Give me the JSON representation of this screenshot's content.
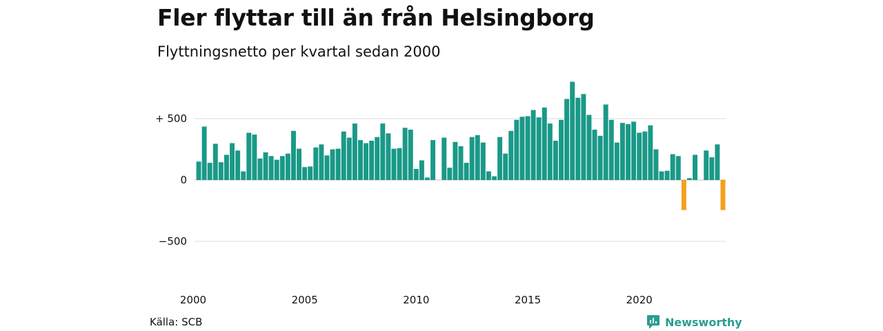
{
  "title": "Fler flyttar till än från Helsingborg",
  "subtitle": "Flyttningsnetto per kvartal sedan 2000",
  "source": "Källa: SCB",
  "brand": "Newsworthy",
  "colors": {
    "positive": "#1a9988",
    "negative": "#f4a01c",
    "grid": "#d9d9d9",
    "brand": "#2a9d8f"
  },
  "chart_data": {
    "type": "bar",
    "title": "Fler flyttar till än från Helsingborg",
    "subtitle": "Flyttningsnetto per kvartal sedan 2000",
    "xlabel": "",
    "ylabel": "",
    "ylim": [
      -850,
      850
    ],
    "yticks": [
      {
        "value": 500,
        "label": "+ 500"
      },
      {
        "value": 0,
        "label": "0"
      },
      {
        "value": -500,
        "label": "−500"
      }
    ],
    "xticks": [
      {
        "year": 2000,
        "label": "2000"
      },
      {
        "year": 2005,
        "label": "2005"
      },
      {
        "year": 2010,
        "label": "2010"
      },
      {
        "year": 2015,
        "label": "2015"
      },
      {
        "year": 2020,
        "label": "2020"
      }
    ],
    "start": "2000 Q1",
    "grid": true,
    "values": [
      150,
      435,
      140,
      295,
      145,
      205,
      300,
      240,
      70,
      385,
      370,
      175,
      225,
      195,
      165,
      195,
      215,
      400,
      255,
      105,
      110,
      265,
      290,
      200,
      250,
      255,
      395,
      345,
      460,
      325,
      300,
      320,
      350,
      460,
      380,
      255,
      260,
      425,
      410,
      90,
      160,
      20,
      325,
      0,
      345,
      100,
      310,
      275,
      140,
      350,
      365,
      305,
      70,
      30,
      350,
      215,
      400,
      490,
      515,
      520,
      570,
      510,
      590,
      460,
      320,
      490,
      660,
      800,
      670,
      700,
      530,
      410,
      360,
      615,
      490,
      305,
      465,
      455,
      475,
      385,
      395,
      445,
      250,
      70,
      75,
      210,
      195,
      -245,
      15,
      205,
      0,
      240,
      185,
      290,
      -245
    ]
  }
}
